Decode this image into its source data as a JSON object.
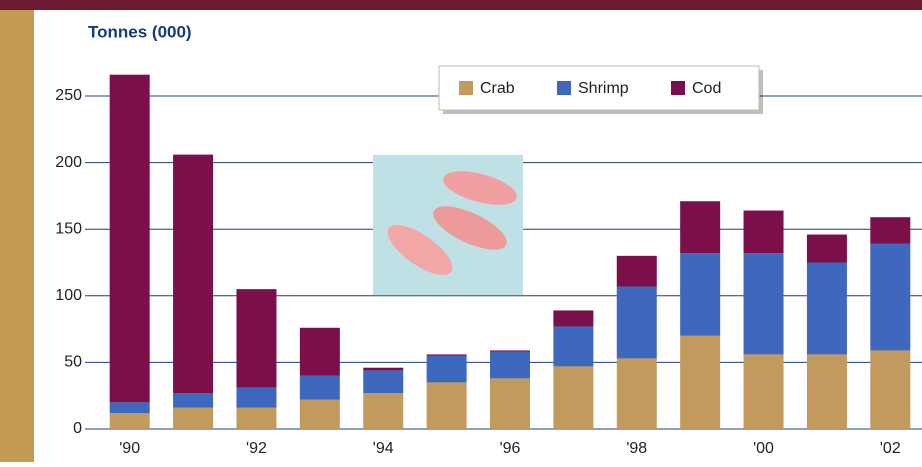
{
  "chart_data": {
    "type": "stacked_bar",
    "title": "Tonnes (000)",
    "categories": [
      "'90",
      null,
      "'92",
      null,
      "'94",
      null,
      "'96",
      null,
      "'98",
      null,
      "'00",
      null,
      "'02"
    ],
    "series": [
      {
        "name": "Crab",
        "color": "#c29a5e",
        "values": [
          12,
          16,
          16,
          22,
          27,
          35,
          38,
          47,
          53,
          70,
          56,
          56,
          59
        ]
      },
      {
        "name": "Shrimp",
        "color": "#3d68bd",
        "values": [
          8,
          11,
          15,
          18,
          17,
          20,
          20,
          30,
          54,
          62,
          76,
          69,
          80
        ]
      },
      {
        "name": "Cod",
        "color": "#7a0f4a",
        "values": [
          246,
          179,
          74,
          36,
          2,
          1,
          1,
          12,
          23,
          39,
          32,
          21,
          20
        ]
      }
    ],
    "ylim": [
      0,
      270
    ],
    "yticks": [
      0,
      50,
      100,
      150,
      200,
      250
    ],
    "grid": true,
    "legend": "top"
  }
}
